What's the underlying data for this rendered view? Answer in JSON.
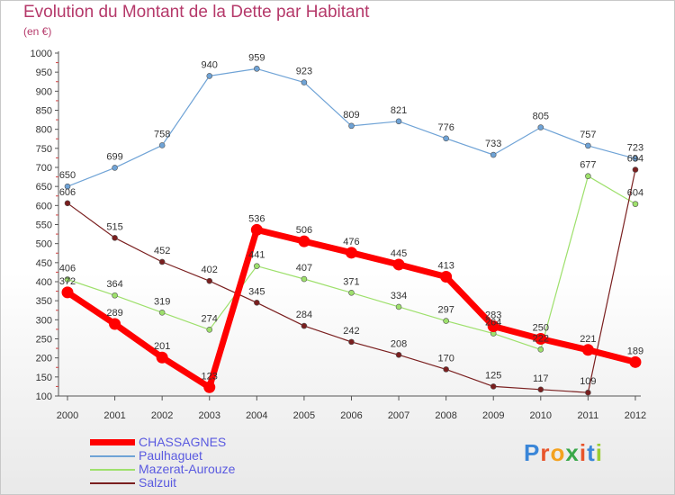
{
  "title": "Evolution du Montant de la Dette par Habitant",
  "subtitle": "(en €)",
  "brand": {
    "letters": [
      "P",
      "r",
      "o",
      "x",
      "i",
      "t",
      "i"
    ],
    "colors": [
      "#3a86d8",
      "#e8542b",
      "#f4a21f",
      "#3aa84a",
      "#e8542b",
      "#3a86d8",
      "#9acd32"
    ]
  },
  "chart_data": {
    "type": "line",
    "title": "Evolution du Montant de la Dette par Habitant",
    "subtitle": "(en €)",
    "xlabel": "",
    "ylabel": "",
    "x": [
      "2000",
      "2001",
      "2002",
      "2003",
      "2004",
      "2005",
      "2006",
      "2007",
      "2008",
      "2009",
      "2010",
      "2011",
      "2012"
    ],
    "yticks": [
      100,
      150,
      200,
      250,
      300,
      350,
      400,
      450,
      500,
      550,
      600,
      650,
      700,
      750,
      800,
      850,
      900,
      950,
      1000
    ],
    "ylim": [
      100,
      1000
    ],
    "grid": false,
    "legend_position": "bottom-left",
    "series": [
      {
        "name": "CHASSAGNES",
        "color": "#ff0000",
        "values": [
          372,
          289,
          201,
          123,
          536,
          506,
          476,
          445,
          413,
          283,
          250,
          221,
          189
        ]
      },
      {
        "name": "Paulhaguet",
        "color": "#6fa3d6",
        "values": [
          650,
          699,
          758,
          940,
          959,
          923,
          809,
          821,
          776,
          733,
          805,
          757,
          723
        ]
      },
      {
        "name": "Mazerat-Aurouze",
        "color": "#9ee06c",
        "values": [
          406,
          364,
          319,
          274,
          441,
          407,
          371,
          334,
          297,
          264,
          222,
          677,
          604
        ]
      },
      {
        "name": "Salzuit",
        "color": "#7a1f1f",
        "values": [
          606,
          515,
          452,
          402,
          345,
          284,
          242,
          208,
          170,
          125,
          117,
          109,
          694
        ]
      }
    ]
  }
}
